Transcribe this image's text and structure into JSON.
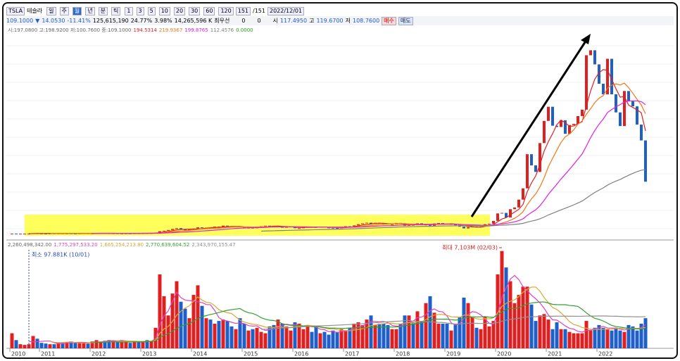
{
  "toolbar": {
    "symbol": "TSLA",
    "name": "테슬라",
    "periods": [
      "일",
      "주",
      "월",
      "년",
      "분",
      "틱"
    ],
    "intervals": [
      "1",
      "3",
      "5",
      "10",
      "20",
      "30",
      "60",
      "120"
    ],
    "count": "151",
    "total": "/151",
    "date": "2022/12/01"
  },
  "quote": {
    "price": "109.1000",
    "arrow": "▼",
    "change": "14.0530",
    "rate": "-11.41%",
    "volume": "125,615,190",
    "vol_rate": "24.77%",
    "turnover": "3.98%",
    "amount": "14,265,596 K",
    "best": "최우선",
    "bid": "0",
    "ask": "0",
    "open_label": "시",
    "open": "117.4950",
    "high_label": "고",
    "high": "119.6700",
    "low_label": "저",
    "low": "108.7600",
    "buy": "매수",
    "sell": "매도"
  },
  "price_legend": {
    "ohlc": "시:197.0800 고:198.9200 저:100.7600 종:109.1000",
    "ma": [
      {
        "value": "194.5314",
        "color": "#e02020"
      },
      {
        "value": "219.9367",
        "color": "#f07818"
      },
      {
        "value": "199.8765",
        "color": "#e020e0"
      },
      {
        "value": "112.4576",
        "color": "#808080"
      },
      {
        "value": "0.0000",
        "color": "#20a020"
      }
    ]
  },
  "volume_legend": {
    "total": "2,260,498,342.00",
    "ma": [
      {
        "value": "1,775,297,533.20",
        "color": "#e040c0"
      },
      {
        "value": "1,665,254,213.80",
        "color": "#d8a838"
      },
      {
        "value": "2,770,639,604.52",
        "color": "#30a030"
      },
      {
        "value": "2,343,970,155.47",
        "color": "#909090"
      }
    ]
  },
  "chart_data": {
    "type": "candlestick",
    "categories": [
      "2010",
      null,
      null,
      null,
      null,
      null,
      null,
      "2011",
      null,
      null,
      null,
      null,
      null,
      null,
      null,
      null,
      null,
      null,
      null,
      "2012",
      null,
      null,
      null,
      null,
      null,
      null,
      null,
      null,
      null,
      null,
      null,
      "2013",
      null,
      null,
      null,
      null,
      null,
      null,
      null,
      null,
      null,
      null,
      null,
      "2014",
      null,
      null,
      null,
      null,
      null,
      null,
      null,
      null,
      null,
      null,
      null,
      "2015",
      null,
      null,
      null,
      null,
      null,
      null,
      null,
      null,
      null,
      null,
      null,
      "2016",
      null,
      null,
      null,
      null,
      null,
      null,
      null,
      null,
      null,
      null,
      null,
      "2017",
      null,
      null,
      null,
      null,
      null,
      null,
      null,
      null,
      null,
      null,
      null,
      "2018",
      null,
      null,
      null,
      null,
      null,
      null,
      null,
      null,
      null,
      null,
      null,
      "2019",
      null,
      null,
      null,
      null,
      null,
      null,
      null,
      null,
      null,
      null,
      null,
      "2020",
      null,
      null,
      null,
      null,
      null,
      null,
      null,
      null,
      null,
      null,
      null,
      "2021",
      null,
      null,
      null,
      null,
      null,
      null,
      null,
      null,
      null,
      null,
      null,
      "2022",
      null,
      null,
      null,
      null,
      null,
      null,
      null,
      null,
      null,
      null,
      null
    ],
    "close": [
      1.59,
      1.19,
      1.31,
      1.39,
      1.44,
      2.33,
      1.78,
      1.6,
      1.58,
      1.86,
      1.84,
      2.0,
      1.9,
      1.91,
      1.64,
      1.63,
      1.96,
      2.15,
      1.9,
      1.93,
      2.21,
      2.48,
      2.2,
      1.96,
      2.09,
      1.85,
      1.91,
      1.95,
      1.89,
      2.26,
      2.25,
      2.5,
      2.33,
      2.53,
      3.6,
      6.47,
      7.3,
      8.98,
      11.2,
      12.9,
      10.6,
      8.4,
      10.0,
      12.0,
      14.5,
      13.9,
      13.9,
      13.8,
      16.0,
      15.0,
      18.0,
      16.2,
      16.1,
      16.3,
      14.8,
      13.6,
      13.6,
      12.6,
      15.1,
      16.7,
      17.9,
      17.7,
      16.6,
      16.6,
      13.8,
      15.3,
      16.0,
      12.7,
      12.7,
      15.3,
      16.0,
      14.9,
      14.2,
      15.7,
      14.1,
      13.6,
      13.1,
      12.6,
      14.2,
      16.8,
      16.6,
      18.5,
      20.9,
      22.7,
      24.1,
      21.6,
      23.8,
      22.7,
      22.1,
      20.6,
      20.8,
      23.6,
      22.9,
      17.7,
      19.6,
      19.0,
      22.9,
      19.9,
      20.1,
      17.7,
      22.5,
      23.4,
      22.2,
      20.5,
      21.3,
      18.7,
      15.9,
      12.3,
      14.9,
      16.1,
      15.0,
      16.1,
      20.99,
      21.99,
      27.9,
      43.4,
      44.5,
      34.9,
      52.1,
      55.7,
      71.99,
      95.4,
      166.1,
      143.0,
      129.3,
      189.2,
      235.2,
      264.5,
      225.2,
      222.6,
      236.5,
      208.4,
      226.6,
      229.1,
      245.2,
      258.5,
      371.3,
      381.6,
      352.3,
      312.2,
      290.1,
      363.9,
      290.3,
      252.8,
      224.5,
      297.1,
      275.6,
      265.3,
      227.5,
      194.7,
      109.1
    ],
    "volume": [
      1100,
      600,
      300,
      250,
      300,
      900,
      700,
      400,
      350,
      300,
      300,
      400,
      400,
      450,
      500,
      400,
      450,
      400,
      350,
      500,
      600,
      500,
      550,
      600,
      550,
      500,
      600,
      500,
      400,
      450,
      450,
      500,
      600,
      550,
      1500,
      5400,
      3800,
      2400,
      4000,
      4900,
      3400,
      2900,
      2200,
      3900,
      4600,
      3100,
      2200,
      2100,
      1800,
      2000,
      2100,
      2000,
      1600,
      1400,
      2200,
      1800,
      1300,
      1400,
      1500,
      1200,
      1100,
      1600,
      1700,
      2100,
      1800,
      1600,
      1300,
      1900,
      1800,
      1400,
      1700,
      1200,
      1600,
      1100,
      1200,
      1000,
      1300,
      1200,
      1400,
      1300,
      1500,
      1800,
      1900,
      1700,
      2100,
      2400,
      1700,
      1800,
      1800,
      1700,
      1400,
      1400,
      1800,
      2400,
      2400,
      1900,
      2700,
      2000,
      3300,
      3800,
      2600,
      1800,
      1800,
      1800,
      1300,
      1800,
      2300,
      3700,
      3300,
      2300,
      1500,
      1400,
      2300,
      1600,
      2000,
      5400,
      7103,
      5900,
      4900,
      3300,
      3900,
      4500,
      4500,
      3200,
      2000,
      2400,
      2500,
      2100,
      1400,
      1900,
      1400,
      1400,
      1200,
      1100,
      1100,
      1100,
      2000,
      1300,
      1500,
      1700,
      1500,
      1400,
      1300,
      1500,
      1300,
      1200,
      1700,
      1600,
      1300,
      1800,
      2200
    ],
    "ylim": [
      0,
      426
    ],
    "volume_ylim": [
      0,
      7600
    ],
    "up_color": "#e02020",
    "down_color": "#1f5fc8",
    "min_annotation": "최소 97.881K (10/01)",
    "max_annotation": "최대 7,103M (02/03)"
  }
}
